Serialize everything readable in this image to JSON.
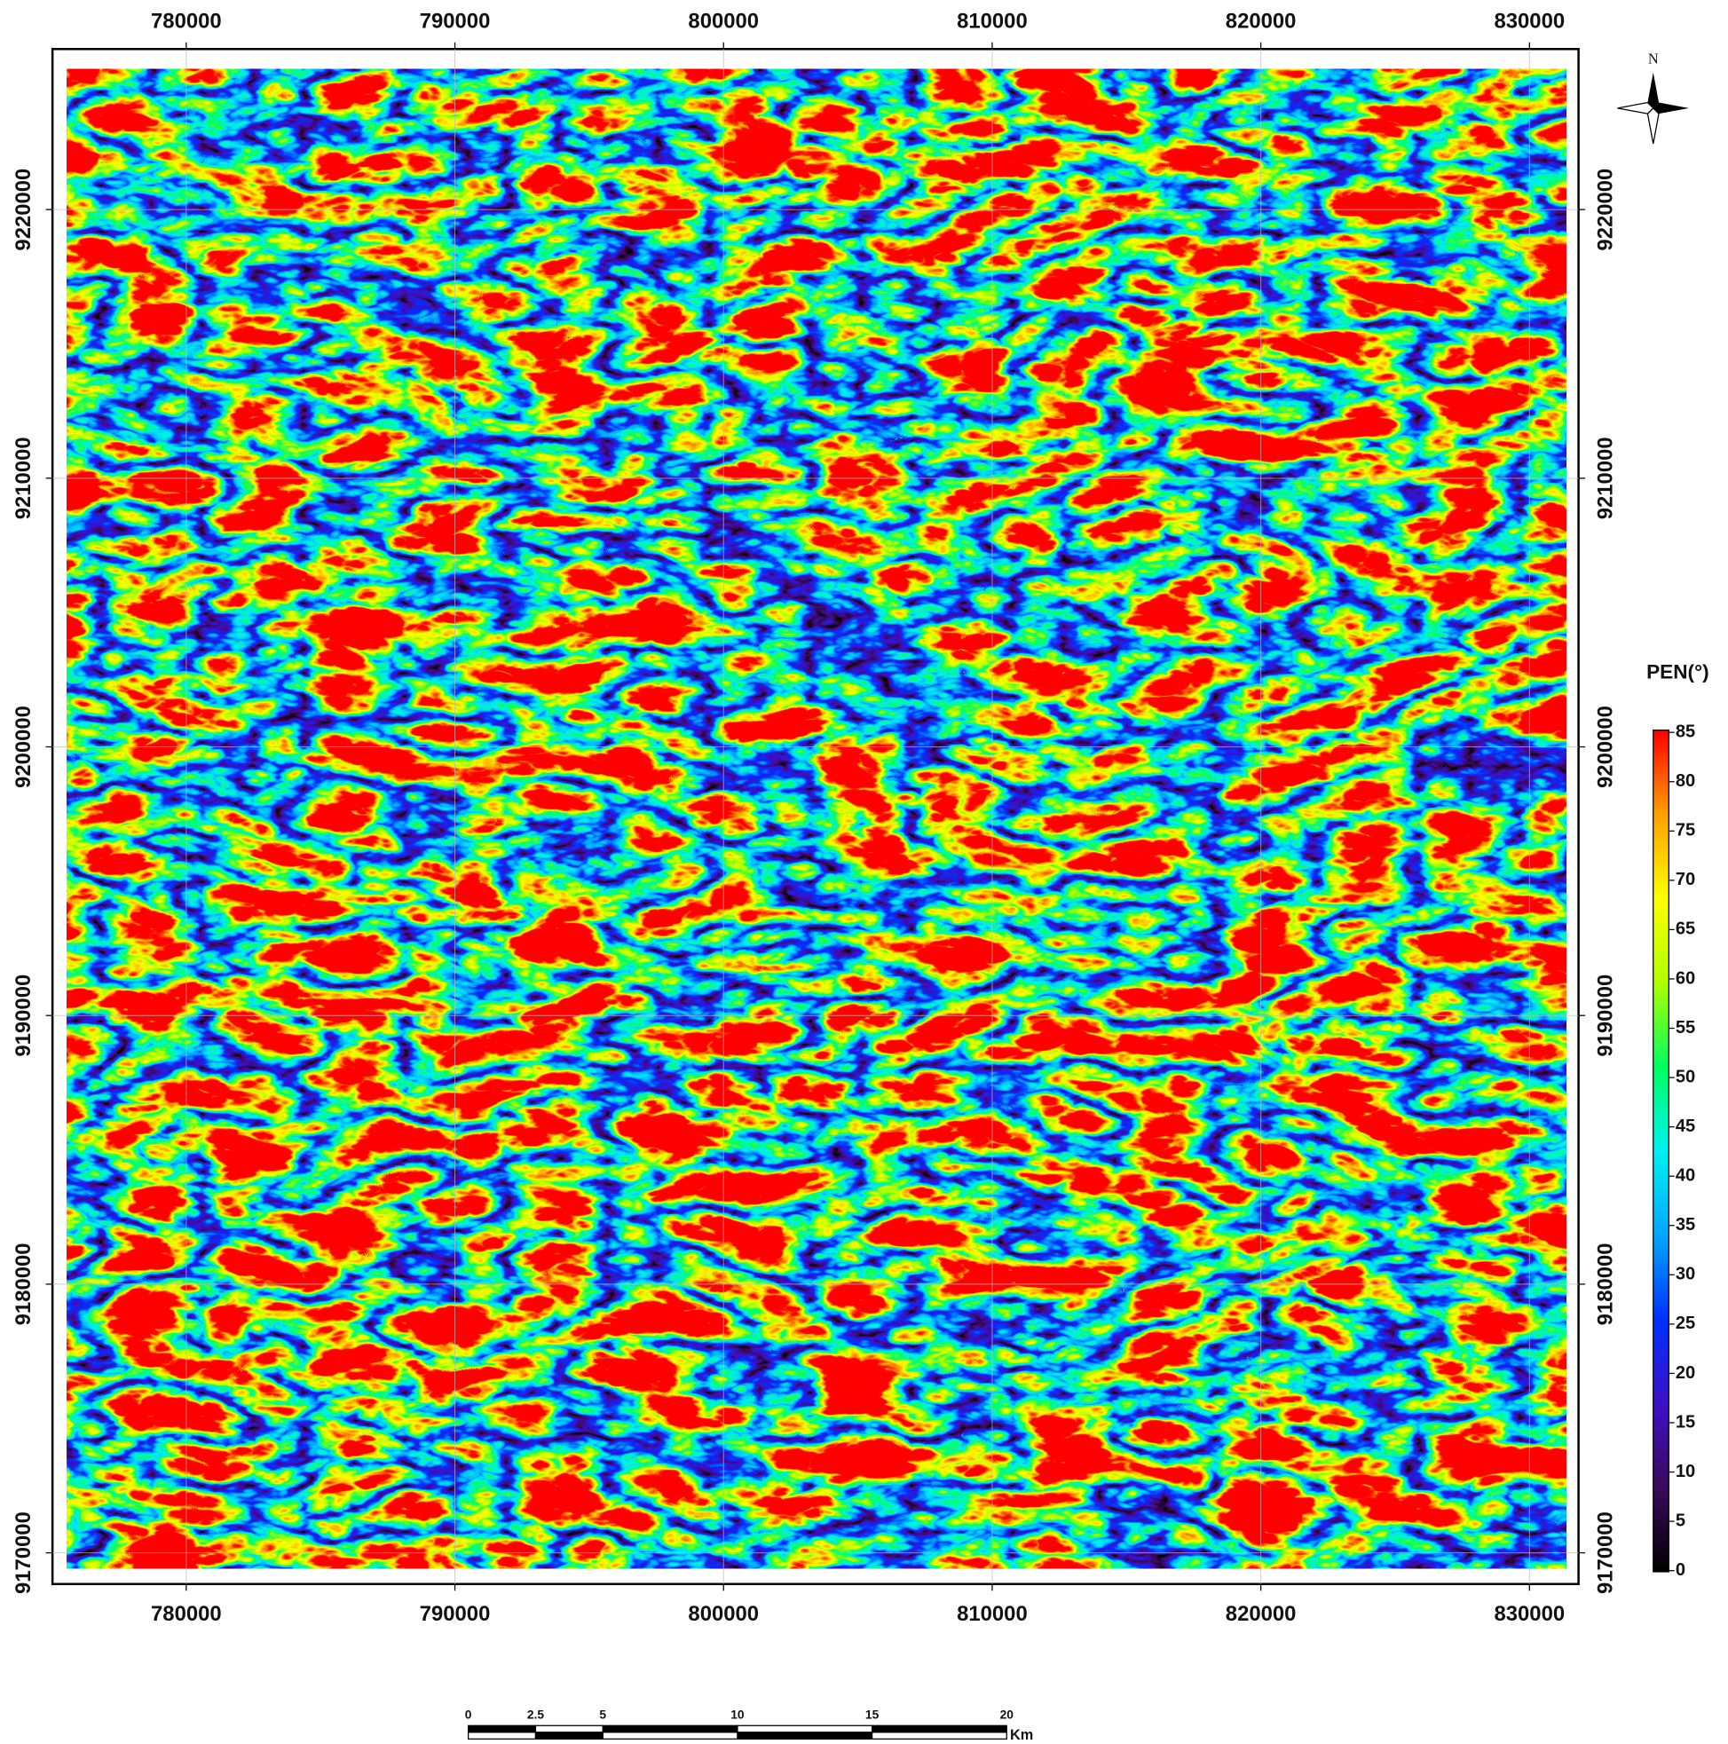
{
  "map": {
    "xlim": [
      775021,
      831826
    ],
    "ylim": [
      9168838,
      9225975
    ],
    "xticks": [
      780000,
      790000,
      800000,
      810000,
      820000,
      830000
    ],
    "yticks": [
      9170000,
      9180000,
      9190000,
      9200000,
      9210000,
      9220000
    ],
    "grid": true
  },
  "legend": {
    "title": "PEN(°)",
    "ticks": [
      0,
      5,
      10,
      15,
      20,
      25,
      30,
      35,
      40,
      45,
      50,
      55,
      60,
      65,
      70,
      75,
      80,
      85
    ],
    "colors": [
      "#000000",
      "#3a0a5a",
      "#3c10c8",
      "#0030ff",
      "#00a8ff",
      "#00f0f0",
      "#00ff60",
      "#b0ff00",
      "#ffff00",
      "#ffa000",
      "#ff0000"
    ]
  },
  "north_arrow": {
    "label": "N"
  },
  "scale_bar": {
    "ticks": [
      0,
      2.5,
      5,
      10,
      15,
      20
    ],
    "unit": "Km"
  }
}
